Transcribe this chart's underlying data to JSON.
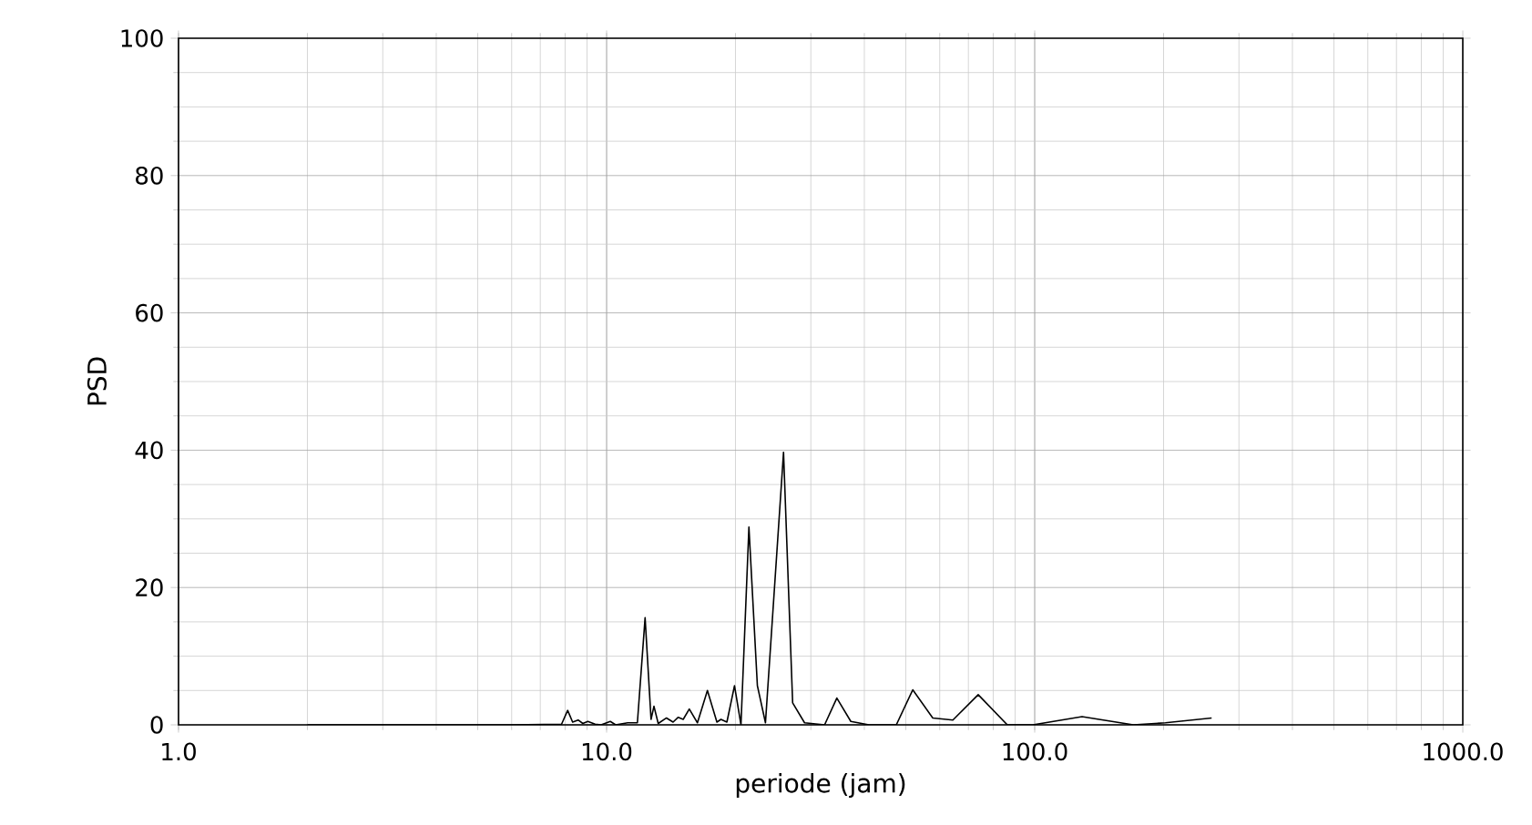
{
  "chart_data": {
    "type": "line",
    "xlabel": "periode (jam)",
    "ylabel": "PSD",
    "log": "x",
    "grid": true,
    "color": "#000000",
    "xlim": [
      1,
      1000
    ],
    "ylim": [
      0,
      100
    ],
    "xticks": [
      {
        "value": 1,
        "label": "1.0"
      },
      {
        "value": 10,
        "label": "10.0"
      },
      {
        "value": 100,
        "label": "100.0"
      },
      {
        "value": 1000,
        "label": "1000.0"
      }
    ],
    "yticks": [
      0,
      20,
      40,
      60,
      80,
      100
    ],
    "x": [
      2.0,
      2.72,
      4.02,
      5.95,
      7.85,
      8.11,
      8.33,
      8.58,
      8.8,
      9.04,
      9.4,
      9.71,
      10.2,
      10.5,
      11.2,
      11.8,
      12.3,
      12.7,
      12.9,
      13.2,
      13.8,
      14.3,
      14.7,
      15.1,
      15.6,
      16.3,
      17.2,
      18.1,
      18.5,
      19.1,
      19.9,
      20.6,
      21.5,
      22.5,
      23.5,
      25.9,
      27.2,
      29.0,
      32.3,
      34.5,
      37.2,
      41.0,
      47.5,
      51.9,
      57.8,
      64.4,
      73.8,
      86.3,
      99,
      129,
      170,
      202,
      259
    ],
    "values": [
      0,
      0,
      0,
      0,
      0.1,
      2.1,
      0.4,
      0.7,
      0.2,
      0.5,
      0.1,
      0,
      0.5,
      0,
      0.3,
      0.3,
      15.6,
      0.8,
      2.7,
      0.2,
      1.0,
      0.4,
      1.1,
      0.8,
      2.3,
      0.3,
      5.0,
      0.4,
      0.8,
      0.4,
      5.7,
      0,
      28.8,
      5.7,
      0.3,
      39.7,
      3.2,
      0.3,
      0,
      3.9,
      0.5,
      0,
      0,
      5.1,
      1.0,
      0.7,
      4.4,
      0,
      0,
      1.2,
      0,
      0.3,
      1.0
    ]
  }
}
